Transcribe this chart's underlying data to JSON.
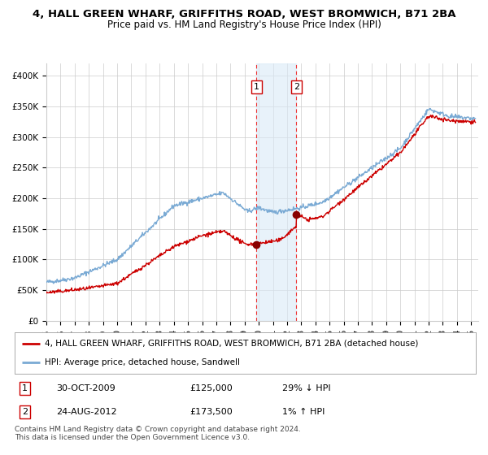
{
  "title1": "4, HALL GREEN WHARF, GRIFFITHS ROAD, WEST BROMWICH, B71 2BA",
  "title2": "Price paid vs. HM Land Registry's House Price Index (HPI)",
  "ylim": [
    0,
    420000
  ],
  "xlim_start": 1995.0,
  "xlim_end": 2025.5,
  "yticks": [
    0,
    50000,
    100000,
    150000,
    200000,
    250000,
    300000,
    350000,
    400000
  ],
  "ytick_labels": [
    "£0",
    "£50K",
    "£100K",
    "£150K",
    "£200K",
    "£250K",
    "£300K",
    "£350K",
    "£400K"
  ],
  "xtick_years": [
    1995,
    1996,
    1997,
    1998,
    1999,
    2000,
    2001,
    2002,
    2003,
    2004,
    2005,
    2006,
    2007,
    2008,
    2009,
    2010,
    2011,
    2012,
    2013,
    2014,
    2015,
    2016,
    2017,
    2018,
    2019,
    2020,
    2021,
    2022,
    2023,
    2024,
    2025
  ],
  "hpi_color": "#7aaad4",
  "price_color": "#cc0000",
  "dot_color": "#880000",
  "bg_color": "#ffffff",
  "grid_color": "#cccccc",
  "highlight_fill": "#daeaf7",
  "highlight_alpha": 0.6,
  "vline_color": "#ee3333",
  "sale1_x": 2009.83,
  "sale1_y": 125000,
  "sale2_x": 2012.65,
  "sale2_y": 173500,
  "legend_line1": "4, HALL GREEN WHARF, GRIFFITHS ROAD, WEST BROMWICH, B71 2BA (detached house)",
  "legend_line2": "HPI: Average price, detached house, Sandwell",
  "table_row1": [
    "1",
    "30-OCT-2009",
    "£125,000",
    "29% ↓ HPI"
  ],
  "table_row2": [
    "2",
    "24-AUG-2012",
    "£173,500",
    "1% ↑ HPI"
  ],
  "footnote": "Contains HM Land Registry data © Crown copyright and database right 2024.\nThis data is licensed under the Open Government Licence v3.0.",
  "title_fontsize": 9.5,
  "subtitle_fontsize": 8.5,
  "tick_fontsize": 7.5,
  "legend_fontsize": 7.5,
  "table_fontsize": 8,
  "footnote_fontsize": 6.5
}
